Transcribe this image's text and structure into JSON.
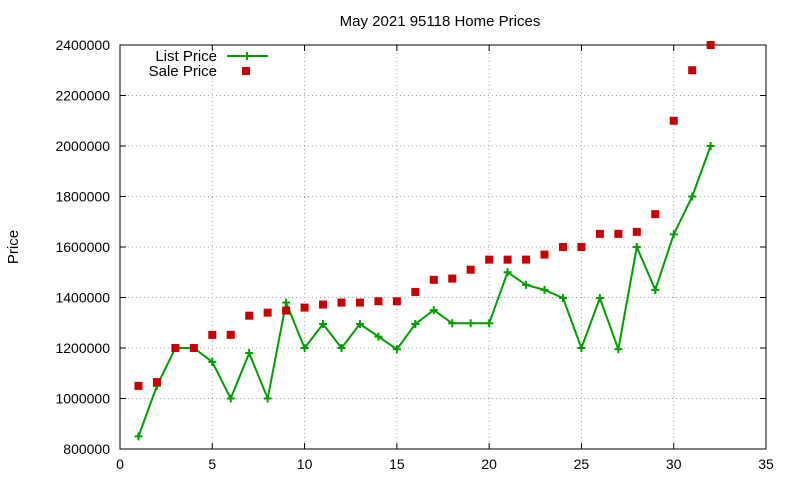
{
  "chart_data": {
    "type": "line",
    "title": "May 2021 95118 Home Prices",
    "xlabel": "",
    "ylabel": "Price",
    "xlim": [
      0,
      35
    ],
    "ylim": [
      800000,
      2400000
    ],
    "x_ticks": [
      0,
      5,
      10,
      15,
      20,
      25,
      30,
      35
    ],
    "y_ticks": [
      800000,
      1000000,
      1200000,
      1400000,
      1600000,
      1800000,
      2000000,
      2200000,
      2400000
    ],
    "grid": true,
    "legend_position": "top-left",
    "series": [
      {
        "name": "List Price",
        "style": "line-with-plus-markers",
        "color": "#009e00",
        "x": [
          1,
          2,
          3,
          4,
          5,
          6,
          7,
          8,
          9,
          10,
          11,
          12,
          13,
          14,
          15,
          16,
          17,
          18,
          19,
          20,
          21,
          22,
          23,
          24,
          25,
          26,
          27,
          28,
          29,
          30,
          31,
          32
        ],
        "values": [
          850000,
          1050000,
          1200000,
          1200000,
          1145000,
          1000000,
          1180000,
          1000000,
          1380000,
          1200000,
          1295000,
          1200000,
          1295000,
          1245000,
          1195000,
          1295000,
          1350000,
          1298000,
          1298000,
          1298000,
          1500000,
          1450000,
          1430000,
          1398000,
          1200000,
          1398000,
          1195000,
          1600000,
          1430000,
          1650000,
          1800000,
          2000000
        ]
      },
      {
        "name": "Sale Price",
        "style": "square-markers",
        "color": "#c80000",
        "x": [
          1,
          2,
          3,
          4,
          5,
          6,
          7,
          8,
          9,
          10,
          11,
          12,
          13,
          14,
          15,
          16,
          17,
          18,
          19,
          20,
          21,
          22,
          23,
          24,
          25,
          26,
          27,
          28,
          29,
          30,
          31,
          32
        ],
        "values": [
          1050000,
          1065000,
          1200000,
          1200000,
          1252000,
          1252000,
          1328000,
          1340000,
          1348000,
          1360000,
          1372000,
          1380000,
          1380000,
          1385000,
          1385000,
          1422000,
          1470000,
          1475000,
          1510000,
          1550000,
          1550000,
          1550000,
          1570000,
          1600000,
          1600000,
          1652000,
          1652000,
          1660000,
          1730000,
          2100000,
          2300000,
          2400000
        ]
      }
    ]
  }
}
